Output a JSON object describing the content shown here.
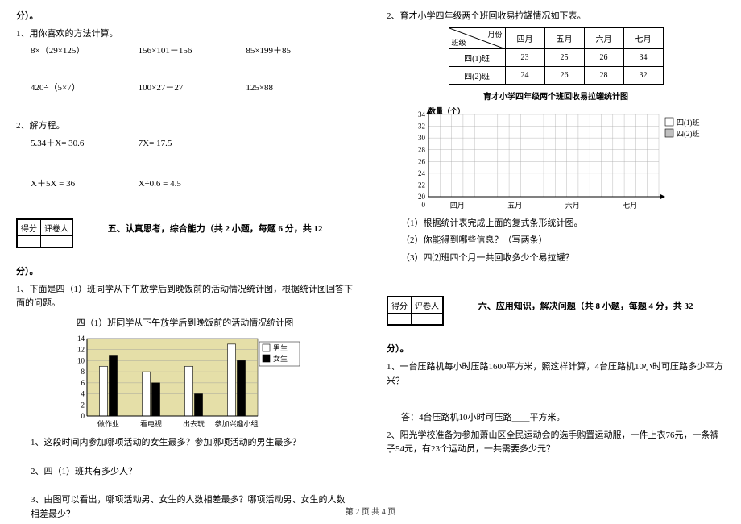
{
  "left": {
    "fen": "分）。",
    "q1": "1、用你喜欢的方法计算。",
    "calc_r1": {
      "a": "8×（29×125）",
      "b": "156×101－156",
      "c": "85×199＋85"
    },
    "calc_r2": {
      "a": "420÷（5×7）",
      "b": "100×27－27",
      "c": "125×88"
    },
    "q2": "2、解方程。",
    "eq_r1": {
      "a": "5.34＋X= 30.6",
      "b": "7X= 17.5"
    },
    "eq_r2": {
      "a": "X＋5X = 36",
      "b": "X÷0.6 = 4.5"
    },
    "score_h1": "得分",
    "score_h2": "评卷人",
    "sec5": "五、认真思考，综合能力（共 2 小题，每题 6 分，共 12",
    "fen2": "分）。",
    "q5_1": "1、下面是四（1）班同学从下午放学后到晚饭前的活动情况统计图，根据统计图回答下面的问题。",
    "chart1_title": "四（1）班同学从下午放学后到晚饭前的活动情况统计图",
    "chart1": {
      "cats": [
        "做作业",
        "看电视",
        "出去玩",
        "参加兴趣小组"
      ],
      "boys": [
        9,
        8,
        9,
        13
      ],
      "girls": [
        11,
        6,
        4,
        10
      ],
      "ymax": 14,
      "ystep": 2,
      "boy_color": "#ffffff",
      "girl_color": "#000000",
      "leg_boy": "男生",
      "leg_girl": "女生",
      "bg": "#e5dfa8",
      "label_fs": 9
    },
    "q5_1_1": "1、这段时间内参加哪项活动的女生最多？参加哪项活动的男生最多？",
    "q5_1_2": "2、四（1）班共有多少人？",
    "q5_1_3": "3、由图可以看出，哪项活动男、女生的人数相差最多？哪项活动男、女生的人数相差最少？"
  },
  "right": {
    "q5_2": "2、育才小学四年级两个班回收易拉罐情况如下表。",
    "table": {
      "diag_top": "月份",
      "diag_bot": "班级",
      "cols": [
        "四月",
        "五月",
        "六月",
        "七月"
      ],
      "rows": [
        {
          "label": "四(1)班",
          "vals": [
            "23",
            "25",
            "26",
            "34"
          ]
        },
        {
          "label": "四(2)班",
          "vals": [
            "24",
            "26",
            "28",
            "32"
          ]
        }
      ]
    },
    "chart2_title": "育才小学四年级两个班回收易拉罐统计图",
    "chart2": {
      "ylabel": "数量（个）",
      "cats": [
        "四月",
        "五月",
        "六月",
        "七月"
      ],
      "ymin": 20,
      "ymax": 34,
      "ystep": 2,
      "leg1": "四(1)班",
      "leg2": "四(2)班",
      "c1": "#ffffff",
      "c2": "#c0c0c0",
      "grid": "#aaaaaa",
      "label_fs": 9
    },
    "q5_2_1": "（1）根据统计表完成上面的复式条形统计图。",
    "q5_2_2": "（2）你能得到哪些信息？（写两条）",
    "q5_2_3": "（3）四⑵班四个月一共回收多少个易拉罐？",
    "score_h1": "得分",
    "score_h2": "评卷人",
    "sec6": "六、应用知识，解决问题（共 8 小题，每题 4 分，共 32",
    "fen": "分）。",
    "q6_1": "1、一台压路机每小时压路1600平方米，照这样计算，4台压路机10小时可压路多少平方米？",
    "q6_1a": "答：4台压路机10小时可压路＿＿平方米。",
    "q6_2": "2、阳光学校准备为参加萧山区全民运动会的选手购置运动服，一件上衣76元，一条裤子54元，有23个运动员，一共需要多少元？"
  },
  "footer": "第 2 页 共 4 页"
}
